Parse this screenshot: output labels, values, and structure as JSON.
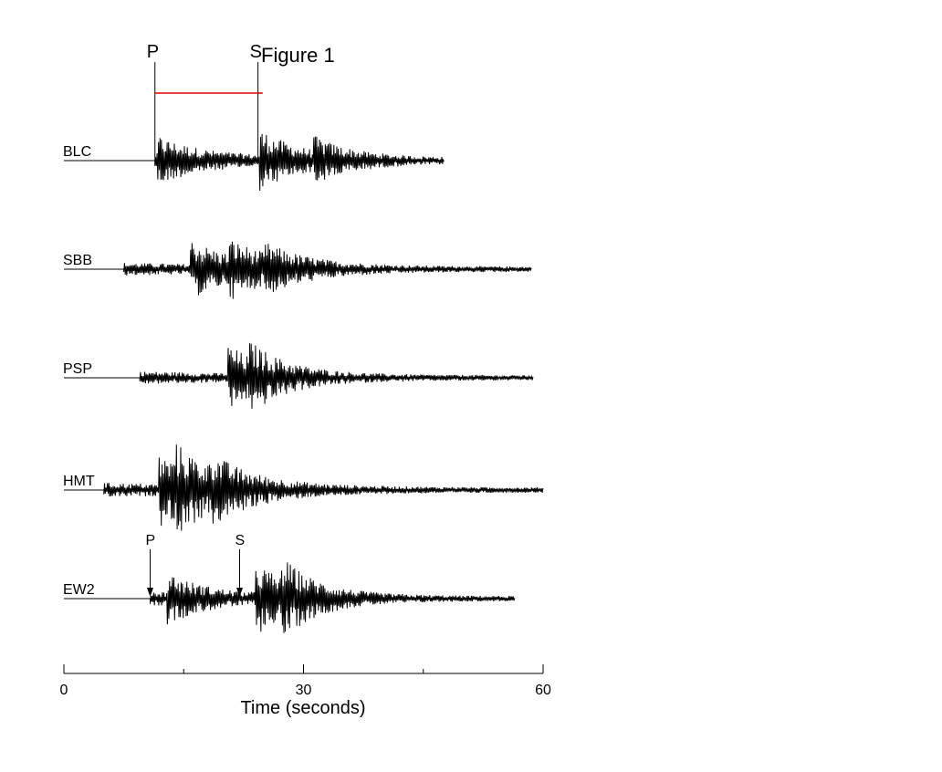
{
  "chart_data": {
    "type": "line",
    "title": "Figure 1",
    "xlabel": "Time (seconds)",
    "ylabel": "",
    "xlim": [
      0,
      60
    ],
    "x_ticks": [
      0,
      30,
      60
    ],
    "x_minor_ticks": [
      15,
      45
    ],
    "grid": false,
    "series": [
      {
        "name": "BLC",
        "onset": 11.4,
        "end": 47.6,
        "peak_times": [
          12.0,
          24.8,
          31.5
        ],
        "peak_amps": [
          1.0,
          1.4,
          0.8
        ],
        "decay": 14,
        "noise": 0.3
      },
      {
        "name": "SBB",
        "onset": 7.5,
        "end": 58.6,
        "peak_times": [
          16.1,
          21.0,
          25.5
        ],
        "peak_amps": [
          1.4,
          0.9,
          0.6
        ],
        "decay": 16,
        "noise": 0.25
      },
      {
        "name": "PSP",
        "onset": 9.5,
        "end": 58.8,
        "peak_times": [
          20.8,
          23.5
        ],
        "peak_amps": [
          1.6,
          0.9
        ],
        "decay": 14,
        "noise": 0.25
      },
      {
        "name": "HMT",
        "onset": 5.0,
        "end": 60.0,
        "peak_times": [
          12.2,
          14.0,
          18.5
        ],
        "peak_amps": [
          1.7,
          1.2,
          0.8
        ],
        "decay": 16,
        "noise": 0.3
      },
      {
        "name": "EW2",
        "onset": 10.8,
        "end": 56.5,
        "peak_times": [
          13.2,
          24.3,
          27.5
        ],
        "peak_amps": [
          1.1,
          1.7,
          1.2
        ],
        "decay": 13,
        "noise": 0.3
      }
    ],
    "picks": [
      {
        "trace": "BLC",
        "label": "P",
        "time": 11.4
      },
      {
        "trace": "BLC",
        "label": "S",
        "time": 24.3
      },
      {
        "trace": "EW2",
        "label": "P",
        "time": 10.8
      },
      {
        "trace": "EW2",
        "label": "S",
        "time": 22.0
      }
    ],
    "interval_bar": {
      "from": 11.4,
      "to": 24.9,
      "color": "#e00000"
    }
  }
}
